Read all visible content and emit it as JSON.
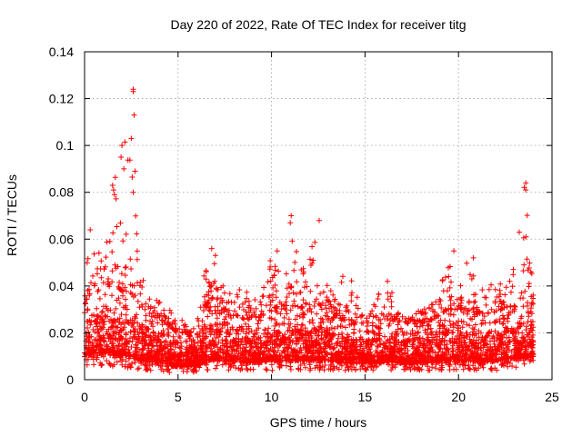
{
  "chart_data": {
    "type": "scatter",
    "title": "Day 220 of 2022, Rate Of TEC Index for receiver titg",
    "xlabel": "GPS time / hours",
    "ylabel": "ROTI / TECUs",
    "xlim": [
      0,
      25
    ],
    "ylim": [
      0,
      0.14
    ],
    "xticks": [
      0,
      5,
      10,
      15,
      20,
      25
    ],
    "xtick_labels": [
      "0",
      "5",
      "10",
      "15",
      "20",
      "25"
    ],
    "yticks": [
      0,
      0.02,
      0.04,
      0.06,
      0.08,
      0.1,
      0.12,
      0.14
    ],
    "ytick_labels": [
      "0",
      "0.02",
      "0.04",
      "0.06",
      "0.08",
      "0.1",
      "0.12",
      "0.14"
    ],
    "grid": true,
    "marker": "+",
    "marker_color": "#ff0000",
    "series": [
      {
        "name": "ROTI",
        "notable_points": {
          "x": [
            2.6,
            2.6,
            2.65,
            2.5,
            2.0,
            1.95,
            2.1,
            1.5,
            1.55,
            1.6,
            2.7,
            2.6,
            0.3,
            1.35,
            6.8,
            7.0,
            11.05,
            11.0,
            12.55,
            10.3,
            16.2,
            19.75,
            20.8,
            23.6,
            23.6,
            23.5
          ],
          "y": [
            0.124,
            0.123,
            0.113,
            0.103,
            0.1,
            0.095,
            0.09,
            0.083,
            0.081,
            0.079,
            0.089,
            0.08,
            0.064,
            0.059,
            0.056,
            0.053,
            0.07,
            0.067,
            0.068,
            0.055,
            0.042,
            0.055,
            0.052,
            0.084,
            0.081,
            0.049
          ]
        },
        "envelope": {
          "description": "dense scatter of ROTI samples",
          "x": [
            0,
            0.5,
            1,
            1.5,
            2,
            2.5,
            3,
            3.5,
            4,
            4.5,
            5,
            5.5,
            6,
            6.5,
            7,
            7.5,
            8,
            8.5,
            9,
            9.5,
            10,
            10.5,
            11,
            11.5,
            12,
            12.5,
            13,
            13.5,
            14,
            14.5,
            15,
            15.5,
            16,
            16.5,
            17,
            17.5,
            18,
            18.5,
            19,
            19.5,
            20,
            20.5,
            21,
            21.5,
            22,
            22.5,
            23,
            23.5,
            24
          ],
          "y_min": [
            0.006,
            0.006,
            0.006,
            0.005,
            0.005,
            0.005,
            0.004,
            0.004,
            0.004,
            0.003,
            0.003,
            0.003,
            0.003,
            0.004,
            0.004,
            0.004,
            0.004,
            0.004,
            0.004,
            0.004,
            0.004,
            0.004,
            0.004,
            0.004,
            0.004,
            0.004,
            0.004,
            0.004,
            0.004,
            0.004,
            0.004,
            0.004,
            0.004,
            0.004,
            0.004,
            0.004,
            0.004,
            0.004,
            0.004,
            0.004,
            0.004,
            0.004,
            0.004,
            0.004,
            0.004,
            0.005,
            0.005,
            0.005,
            0.006
          ],
          "y_typical_max": [
            0.032,
            0.04,
            0.042,
            0.04,
            0.038,
            0.037,
            0.03,
            0.027,
            0.026,
            0.023,
            0.02,
            0.02,
            0.021,
            0.032,
            0.035,
            0.03,
            0.028,
            0.026,
            0.026,
            0.027,
            0.03,
            0.031,
            0.032,
            0.03,
            0.03,
            0.032,
            0.031,
            0.027,
            0.025,
            0.024,
            0.024,
            0.025,
            0.026,
            0.026,
            0.024,
            0.024,
            0.024,
            0.025,
            0.028,
            0.03,
            0.03,
            0.03,
            0.028,
            0.028,
            0.029,
            0.031,
            0.031,
            0.033,
            0.032
          ],
          "y_peak": [
            0.045,
            0.064,
            0.06,
            0.083,
            0.1,
            0.124,
            0.05,
            0.035,
            0.034,
            0.03,
            0.028,
            0.022,
            0.03,
            0.05,
            0.056,
            0.04,
            0.036,
            0.044,
            0.036,
            0.042,
            0.054,
            0.045,
            0.07,
            0.048,
            0.052,
            0.068,
            0.046,
            0.038,
            0.05,
            0.036,
            0.034,
            0.034,
            0.042,
            0.038,
            0.03,
            0.028,
            0.03,
            0.034,
            0.04,
            0.055,
            0.038,
            0.052,
            0.04,
            0.038,
            0.044,
            0.042,
            0.048,
            0.084,
            0.046
          ]
        }
      }
    ]
  }
}
